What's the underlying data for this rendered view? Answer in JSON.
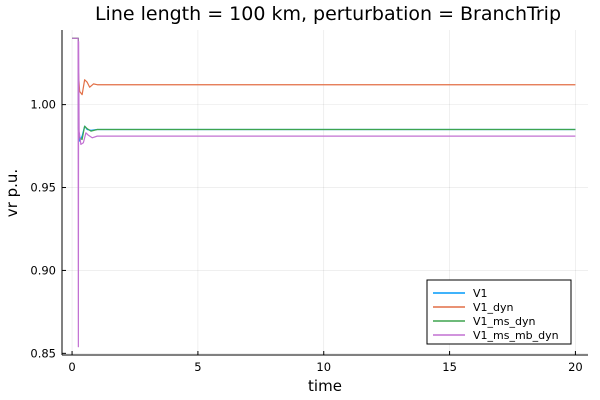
{
  "chart_data": {
    "type": "line",
    "title": "Line length = 100 km, perturbation = BranchTrip",
    "xlabel": "time",
    "ylabel": "vr p.u.",
    "xlim": [
      -0.4,
      20.5
    ],
    "ylim": [
      0.849,
      1.045
    ],
    "x_ticks": [
      0,
      5,
      10,
      15,
      20
    ],
    "x_tick_labels": [
      "0",
      "5",
      "10",
      "15",
      "20"
    ],
    "y_ticks": [
      0.85,
      0.9,
      0.95,
      1.0
    ],
    "y_tick_labels": [
      "0.85",
      "0.90",
      "0.95",
      "1.00"
    ],
    "grid": true,
    "legend_position": "bottom-right",
    "series": [
      {
        "name": "V1",
        "color": "#009AFA",
        "points": [
          [
            0,
            1.04
          ],
          [
            0.25,
            1.04
          ],
          [
            0.25,
            0.986
          ],
          [
            0.3,
            0.978
          ],
          [
            0.4,
            0.981
          ],
          [
            0.5,
            0.987
          ],
          [
            0.6,
            0.985
          ],
          [
            0.75,
            0.9845
          ],
          [
            1.0,
            0.985
          ],
          [
            20,
            0.985
          ]
        ]
      },
      {
        "name": "V1_dyn",
        "color": "#E26F46",
        "points": [
          [
            0,
            1.04
          ],
          [
            0.25,
            1.04
          ],
          [
            0.25,
            1.02
          ],
          [
            0.3,
            1.008
          ],
          [
            0.4,
            1.006
          ],
          [
            0.5,
            1.015
          ],
          [
            0.6,
            1.0135
          ],
          [
            0.7,
            1.0105
          ],
          [
            0.85,
            1.0125
          ],
          [
            1.0,
            1.012
          ],
          [
            20,
            1.012
          ]
        ]
      },
      {
        "name": "V1_ms_dyn",
        "color": "#3EA44E",
        "points": [
          [
            0,
            1.04
          ],
          [
            0.25,
            1.04
          ],
          [
            0.25,
            0.985
          ],
          [
            0.3,
            0.98
          ],
          [
            0.4,
            0.979
          ],
          [
            0.5,
            0.987
          ],
          [
            0.6,
            0.9855
          ],
          [
            0.75,
            0.984
          ],
          [
            1.0,
            0.985
          ],
          [
            20,
            0.985
          ]
        ]
      },
      {
        "name": "V1_ms_mb_dyn",
        "color": "#C271D2",
        "points": [
          [
            0,
            1.04
          ],
          [
            0.24,
            1.04
          ],
          [
            0.25,
            0.854
          ],
          [
            0.26,
            1.038
          ],
          [
            0.28,
            0.984
          ],
          [
            0.35,
            0.976
          ],
          [
            0.45,
            0.977
          ],
          [
            0.55,
            0.983
          ],
          [
            0.65,
            0.9815
          ],
          [
            0.8,
            0.98
          ],
          [
            1.0,
            0.981
          ],
          [
            20,
            0.981
          ]
        ]
      }
    ]
  }
}
